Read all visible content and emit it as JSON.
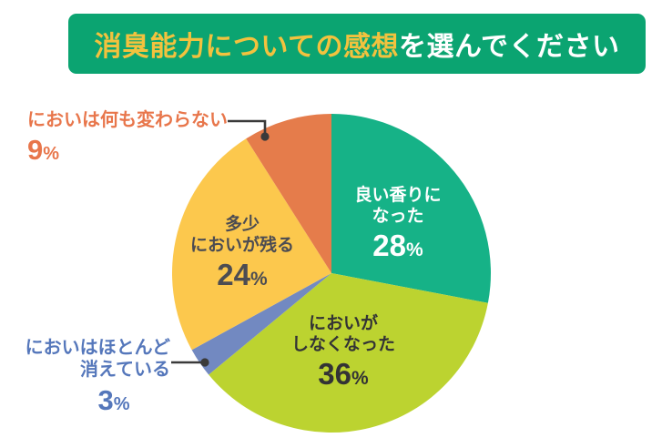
{
  "banner": {
    "highlight_text": "消臭能力についての感想",
    "suffix_text": "を選んでください",
    "bg_color": "#0ba471",
    "highlight_color": "#f2c23e",
    "suffix_color": "#ffffff"
  },
  "chart_data": {
    "type": "pie",
    "title": "消臭能力についての感想を選んでください",
    "unit": "%",
    "start_angle_deg": 0,
    "direction": "clockwise",
    "legend_position": "none",
    "slices": [
      {
        "label": "良い香りになった",
        "value": 28,
        "color": "#16b287"
      },
      {
        "label": "においがしなくなった",
        "value": 36,
        "color": "#bcd330"
      },
      {
        "label": "においはほとんど消えている",
        "value": 3,
        "color": "#7289c1"
      },
      {
        "label": "多少においが残る",
        "value": 24,
        "color": "#fcc84d"
      },
      {
        "label": "においは何も変わらない",
        "value": 9,
        "color": "#e57c4b"
      }
    ]
  },
  "slice_labels": {
    "good_scent": {
      "line1": "良い香りに",
      "line2": "なった",
      "pct": "28",
      "pct_sign": "%",
      "color": "#ffffff"
    },
    "no_smell": {
      "line1": "においが",
      "line2": "しなくなった",
      "pct": "36",
      "pct_sign": "%",
      "color": "#333335"
    },
    "some_remains": {
      "line1": "多少",
      "line2": "においが残る",
      "pct": "24",
      "pct_sign": "%",
      "color": "#4c4c52"
    },
    "no_change": {
      "line1": "においは何も変わらない",
      "pct": "9",
      "pct_sign": "%",
      "color": "#e8764b"
    },
    "almost_gone": {
      "line1": "においはほとんど",
      "line2": "消えている",
      "pct": "3",
      "pct_sign": "%",
      "color": "#5577bb"
    }
  }
}
